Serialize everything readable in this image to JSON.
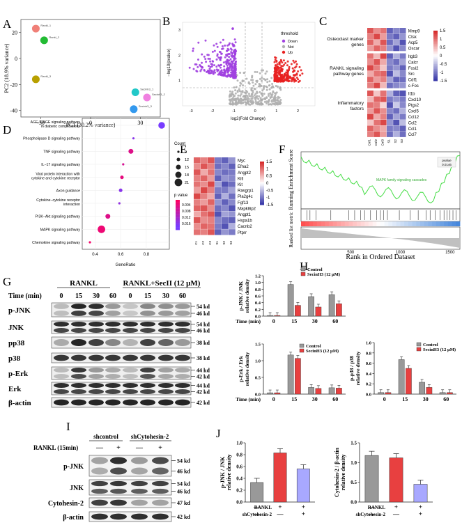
{
  "panels": {
    "a": "A",
    "b": "B",
    "c": "C",
    "d": "D",
    "e": "E",
    "f": "F",
    "g": "G",
    "h": "H",
    "i": "I",
    "j": "J"
  },
  "pca": {
    "xlabel": "PC1 (30.2% variance)",
    "ylabel": "PC2 (18.9% variance)",
    "xticks": [
      "-30",
      "0",
      "30"
    ],
    "yticks": [
      "20",
      "0",
      "-20",
      "-40"
    ],
    "points": [
      {
        "label": "Rankl_1",
        "x": -33,
        "y": 23,
        "color": "#f08078"
      },
      {
        "label": "Rankl_2",
        "x": -28,
        "y": 14,
        "color": "#22bb33"
      },
      {
        "label": "Rankl_3",
        "x": -33,
        "y": -16,
        "color": "#b8a000"
      },
      {
        "label": "Secinh3_1",
        "x": 27,
        "y": -26,
        "color": "#22c8c8"
      },
      {
        "label": "Secinh3_2",
        "x": 34,
        "y": -30,
        "color": "#f080e0"
      },
      {
        "label": "Secinh3_3",
        "x": 26,
        "y": -39,
        "color": "#3399ee"
      }
    ]
  },
  "volcano": {
    "ylabel": "−log10(pvalue)",
    "xlabel": "log2(Fold Change)",
    "xticks": [
      "-3",
      "-2",
      "-1",
      "0",
      "1",
      "2"
    ],
    "yticks": [
      "1",
      "2",
      "3"
    ],
    "legend_title": "threshold",
    "legend": [
      {
        "label": "Down",
        "color": "#a040e0"
      },
      {
        "label": "Not",
        "color": "#b0b0b0"
      },
      {
        "label": "Up",
        "color": "#e82020"
      }
    ]
  },
  "heatmap_c": {
    "groups": [
      "Osteoclast marker genes",
      "RANKL signaling pathway genes",
      "Inflammatory factors"
    ],
    "genes": [
      "Mmp9",
      "Ctsk",
      "Acp5",
      "Oscar",
      "Itgb3",
      "Calcr",
      "Fosl2",
      "Src",
      "Cdf1",
      "c-Fos",
      "Il1b",
      "Cxcl10",
      "Ptgs2",
      "Cxcl5",
      "Ccl12",
      "Ccl2",
      "Ccl1",
      "Ccl7"
    ],
    "scale": [
      "1.5",
      "1",
      "0.5",
      "0",
      "-0.5",
      "-1",
      "-1.5"
    ],
    "columns": [
      "Ctrl1",
      "Ctrl2",
      "Ctrl3",
      "S1",
      "S2",
      "S3"
    ]
  },
  "dotplot_d": {
    "pathways": [
      {
        "name": "AGE−RAGE signaling pathway in diabetic complications",
        "ratio": 0.92,
        "count": 19,
        "p": 0.016
      },
      {
        "name": "Phospholipase D signaling pathway",
        "ratio": 0.7,
        "count": 9,
        "p": 0.014
      },
      {
        "name": "TNF signaling pathway",
        "ratio": 0.68,
        "count": 15,
        "p": 0.004
      },
      {
        "name": "IL−17 signaling pathway",
        "ratio": 0.62,
        "count": 9,
        "p": 0.005
      },
      {
        "name": "Viral protein interaction with cytokine and cytokine receptor",
        "ratio": 0.61,
        "count": 12,
        "p": 0.003
      },
      {
        "name": "Axon guidance",
        "ratio": 0.6,
        "count": 12,
        "p": 0.014
      },
      {
        "name": "Cytokine−cytokine receptor interaction",
        "ratio": 0.59,
        "count": 9,
        "p": 0.013
      },
      {
        "name": "PI3K−Akt signaling pathway",
        "ratio": 0.5,
        "count": 15,
        "p": 0.004
      },
      {
        "name": "MAPK signaling pathway",
        "ratio": 0.45,
        "count": 21,
        "p": 0.002
      },
      {
        "name": "Chemokine signaling pathway",
        "ratio": 0.36,
        "count": 9,
        "p": 0.001
      }
    ],
    "xlabel": "GeneRatio",
    "xticks": [
      "0.4",
      "0.6",
      "0.8"
    ],
    "count_title": "Count",
    "count_levels": [
      "9",
      "12",
      "15",
      "18",
      "21"
    ],
    "p_title": "p value",
    "p_levels": [
      "0.004",
      "0.008",
      "0.012",
      "0.016"
    ]
  },
  "heatmap_e": {
    "genes": [
      "Myc",
      "Efna2",
      "Angpt2",
      "Kitl",
      "Kit",
      "Rasgrp1",
      "Pla2g4c",
      "Fgf13",
      "Mapk8ip2",
      "Angpt1",
      "Hspa1b",
      "Cacnb2",
      "Ptprr"
    ],
    "scale": [
      "1.5",
      "1",
      "0.5",
      "0",
      "-0.5",
      "-1",
      "-1.5"
    ],
    "columns": [
      "C1",
      "C2",
      "C3",
      "S1",
      "S2",
      "S3"
    ]
  },
  "gsea": {
    "ylabel_top": "Running Enrichment Score",
    "ylabel_bottom": "Ranked list metric",
    "xlabel": "Rank in Ordered Dataset",
    "xticks": [
      "500",
      "1000",
      "1500"
    ],
    "pathway": "MAPK family signaling cascades",
    "pvalue_label": "pvalue",
    "pvalue": "0.0146"
  },
  "blot_g": {
    "groups": [
      "RANKL",
      "RANKL+SecII (12 μM)"
    ],
    "time_label": "Time (min)",
    "times": [
      "0",
      "15",
      "30",
      "60",
      "0",
      "15",
      "30",
      "60"
    ],
    "rows": [
      {
        "label": "p-JNK",
        "kd": [
          "54 kd",
          "46 kd"
        ]
      },
      {
        "label": "JNK",
        "kd": [
          "54 kd",
          "46 kd"
        ]
      },
      {
        "label": "pp38",
        "kd": [
          "38 kd"
        ]
      },
      {
        "label": "p38",
        "kd": [
          "38 kd"
        ]
      },
      {
        "label": "p-Erk",
        "kd": [
          "44 kd",
          "42 kd"
        ]
      },
      {
        "label": "Erk",
        "kd": [
          "44 kd",
          "42 kd"
        ]
      },
      {
        "label": "β-actin",
        "kd": [
          "42 kd"
        ]
      }
    ]
  },
  "chart_data": [
    {
      "type": "bar",
      "title": "",
      "ylabel": "p-JNK / JNK relative density",
      "xlabel": "Time (min)",
      "categories": [
        "0",
        "15",
        "30",
        "60"
      ],
      "ylim": [
        0,
        1.2
      ],
      "yticks": [
        "0.0",
        "0.2",
        "0.4",
        "0.6",
        "0.8",
        "1.0",
        "1.2"
      ],
      "series": [
        {
          "name": "Control",
          "values": [
            0.02,
            0.94,
            0.58,
            0.64
          ],
          "color": "#999999"
        },
        {
          "name": "SecinH3 (12 μM)",
          "values": [
            0.02,
            0.32,
            0.27,
            0.37
          ],
          "color": "#e84040"
        }
      ]
    },
    {
      "type": "bar",
      "title": "",
      "ylabel": "p-Erk / Erk relative density",
      "xlabel": "Time (min)",
      "categories": [
        "0",
        "15",
        "30",
        "60"
      ],
      "ylim": [
        0,
        1.5
      ],
      "yticks": [
        "0.0",
        "0.5",
        "1.0",
        "1.5"
      ],
      "series": [
        {
          "name": "Control",
          "values": [
            0.04,
            1.17,
            0.2,
            0.19
          ],
          "color": "#999999"
        },
        {
          "name": "SecinH3 (12 μM)",
          "values": [
            0.04,
            1.07,
            0.17,
            0.18
          ],
          "color": "#e84040"
        }
      ]
    },
    {
      "type": "bar",
      "title": "",
      "ylabel": "p-p38 / p38 relative density",
      "xlabel": "Time (min)",
      "categories": [
        "0",
        "15",
        "30",
        "60"
      ],
      "ylim": [
        0,
        1.0
      ],
      "yticks": [
        "0.0",
        "0.2",
        "0.4",
        "0.6",
        "0.8",
        "1.0"
      ],
      "series": [
        {
          "name": "Control",
          "values": [
            0.03,
            0.67,
            0.23,
            0.03
          ],
          "color": "#999999"
        },
        {
          "name": "SecinH3 (12 μM)",
          "values": [
            0.03,
            0.5,
            0.13,
            0.03
          ],
          "color": "#e84040"
        }
      ]
    },
    {
      "type": "bar",
      "title": "",
      "ylabel": "p-JNK / JNK relative density",
      "categories": [
        "1",
        "2",
        "3"
      ],
      "ylim": [
        0,
        1.0
      ],
      "yticks": [
        "0.0",
        "0.2",
        "0.4",
        "0.6",
        "0.8",
        "1.0"
      ],
      "values": [
        0.33,
        0.83,
        0.56
      ],
      "colors": [
        "#999999",
        "#e84040",
        "#a8a8ff"
      ],
      "rankl": [
        "—",
        "+",
        "+"
      ],
      "sh": [
        "—",
        "—",
        "+"
      ]
    },
    {
      "type": "bar",
      "title": "",
      "ylabel": "Cytohesin-2 / β-actin relative density",
      "categories": [
        "1",
        "2",
        "3"
      ],
      "ylim": [
        0,
        1.5
      ],
      "yticks": [
        "0.0",
        "0.5",
        "1.0",
        "1.5"
      ],
      "values": [
        1.18,
        1.12,
        0.45
      ],
      "colors": [
        "#999999",
        "#e84040",
        "#a8a8ff"
      ],
      "rankl": [
        "—",
        "+",
        "+"
      ],
      "sh": [
        "—",
        "—",
        "+"
      ]
    }
  ],
  "bar_legend": {
    "control": "Control",
    "secinh3": "SecinH3 (12 μM)"
  },
  "row_labels": {
    "rankl": "RANKL",
    "sh": "shCytohesin-2"
  },
  "blot_i": {
    "groups": [
      "shcontrol",
      "shCytohesin-2"
    ],
    "rankl_label": "RANKL (15min)",
    "signs": [
      "—",
      "+",
      "—",
      "+"
    ],
    "rows": [
      {
        "label": "p-JNK",
        "kd": [
          "54 kd",
          "46 kd"
        ]
      },
      {
        "label": "JNK",
        "kd": [
          "54 kd",
          "46 kd"
        ]
      },
      {
        "label": "Cytohesin-2",
        "kd": [
          "47 kd"
        ]
      },
      {
        "label": "β-actin",
        "kd": [
          "42 kd"
        ]
      }
    ]
  }
}
